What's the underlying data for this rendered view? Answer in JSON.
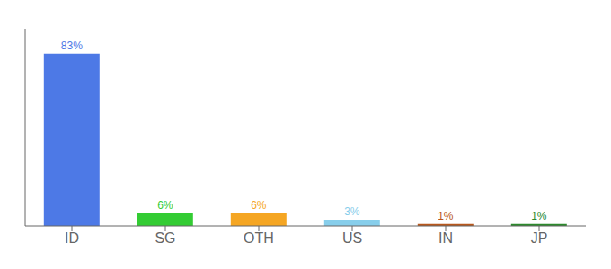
{
  "chart_data": {
    "type": "bar",
    "categories": [
      "ID",
      "SG",
      "OTH",
      "US",
      "IN",
      "JP"
    ],
    "values": [
      83,
      6,
      6,
      3,
      1,
      1
    ],
    "value_labels": [
      "83%",
      "6%",
      "6%",
      "3%",
      "1%",
      "1%"
    ],
    "colors": [
      "#4d79e6",
      "#33cc33",
      "#f5a623",
      "#87ceeb",
      "#b8581d",
      "#2d8a2d"
    ],
    "ylim": [
      0,
      95
    ],
    "grid": false,
    "data_labels": true,
    "tick_labels": "x"
  }
}
